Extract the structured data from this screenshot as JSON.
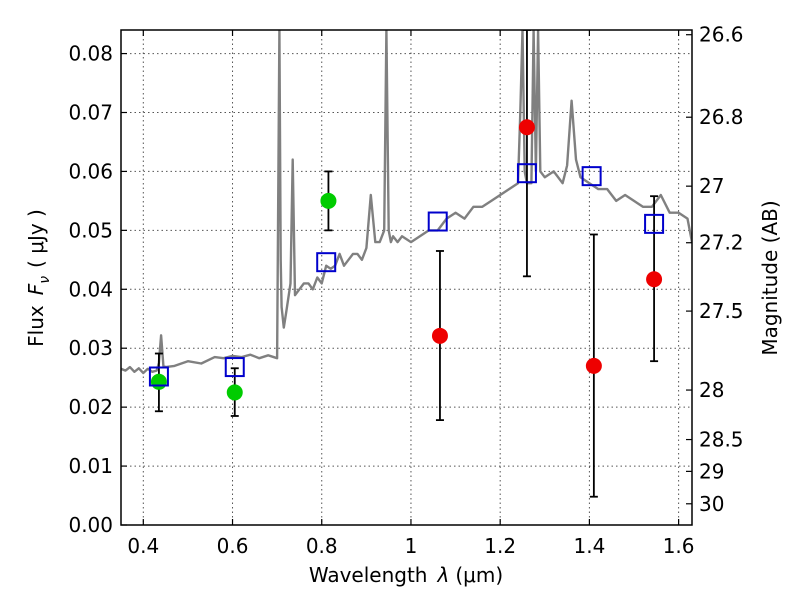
{
  "chart_data": {
    "type": "scatter",
    "xlabel": "Wavelength",
    "xlabel_symbol": "λ",
    "xlabel_unit": "(μm)",
    "ylabel": "Flux",
    "ylabel_symbol": "F",
    "ylabel_sub": "ν",
    "ylabel_unit": "( μJy )",
    "y2label": "Magnitude (AB)",
    "xlim": [
      0.35,
      1.63
    ],
    "ylim": [
      0.0,
      0.084
    ],
    "grid": true,
    "x_ticks": [
      0.4,
      0.6,
      0.8,
      1.0,
      1.2,
      1.4,
      1.6
    ],
    "x_tick_labels": [
      "0.4",
      "0.6",
      "0.8",
      "1",
      "1.2",
      "1.4",
      "1.6"
    ],
    "y_ticks": [
      0.0,
      0.01,
      0.02,
      0.03,
      0.04,
      0.05,
      0.06,
      0.07,
      0.08
    ],
    "y_tick_labels": [
      "0.00",
      "0.01",
      "0.02",
      "0.03",
      "0.04",
      "0.05",
      "0.06",
      "0.07",
      "0.08"
    ],
    "y2_ticks": [
      {
        "label": "26.6",
        "flux": 0.0832
      },
      {
        "label": "26.8",
        "flux": 0.0692
      },
      {
        "label": "27",
        "flux": 0.0575
      },
      {
        "label": "27.2",
        "flux": 0.0479
      },
      {
        "label": "27.5",
        "flux": 0.0363
      },
      {
        "label": "28",
        "flux": 0.0229
      },
      {
        "label": "28.5",
        "flux": 0.0145
      },
      {
        "label": "29",
        "flux": 0.0091
      },
      {
        "label": "30",
        "flux": 0.0036
      }
    ],
    "series": [
      {
        "color": "#808080",
        "kind": "line",
        "x": [
          0.35,
          0.36,
          0.37,
          0.38,
          0.39,
          0.4,
          0.41,
          0.42,
          0.43,
          0.435,
          0.44,
          0.445,
          0.45,
          0.47,
          0.5,
          0.53,
          0.56,
          0.58,
          0.6,
          0.62,
          0.64,
          0.66,
          0.68,
          0.7,
          0.702,
          0.705,
          0.708,
          0.71,
          0.715,
          0.72,
          0.73,
          0.735,
          0.74,
          0.75,
          0.76,
          0.77,
          0.78,
          0.79,
          0.8,
          0.81,
          0.82,
          0.83,
          0.84,
          0.85,
          0.86,
          0.87,
          0.88,
          0.89,
          0.9,
          0.91,
          0.92,
          0.93,
          0.94,
          0.945,
          0.95,
          0.955,
          0.96,
          0.97,
          0.98,
          1.0,
          1.02,
          1.04,
          1.06,
          1.08,
          1.1,
          1.12,
          1.14,
          1.16,
          1.18,
          1.2,
          1.22,
          1.24,
          1.245,
          1.25,
          1.255,
          1.26,
          1.27,
          1.275,
          1.28,
          1.285,
          1.29,
          1.3,
          1.32,
          1.34,
          1.35,
          1.36,
          1.37,
          1.38,
          1.4,
          1.42,
          1.44,
          1.46,
          1.48,
          1.5,
          1.52,
          1.54,
          1.56,
          1.58,
          1.6,
          1.62,
          1.63
        ],
        "y": [
          0.0265,
          0.0262,
          0.0268,
          0.026,
          0.0266,
          0.0258,
          0.0265,
          0.026,
          0.0262,
          0.0275,
          0.0322,
          0.027,
          0.0268,
          0.027,
          0.0278,
          0.0274,
          0.0285,
          0.0283,
          0.0287,
          0.0285,
          0.0289,
          0.0283,
          0.0288,
          0.0283,
          0.05,
          0.084,
          0.045,
          0.037,
          0.0335,
          0.036,
          0.041,
          0.062,
          0.039,
          0.04,
          0.041,
          0.041,
          0.04,
          0.042,
          0.041,
          0.044,
          0.0435,
          0.044,
          0.046,
          0.044,
          0.045,
          0.046,
          0.046,
          0.045,
          0.047,
          0.056,
          0.048,
          0.048,
          0.05,
          0.084,
          0.05,
          0.048,
          0.049,
          0.048,
          0.049,
          0.048,
          0.049,
          0.05,
          0.05,
          0.052,
          0.053,
          0.052,
          0.054,
          0.054,
          0.055,
          0.056,
          0.057,
          0.058,
          0.07,
          0.084,
          0.06,
          0.058,
          0.058,
          0.084,
          0.06,
          0.084,
          0.06,
          0.059,
          0.06,
          0.058,
          0.061,
          0.072,
          0.062,
          0.059,
          0.058,
          0.057,
          0.057,
          0.055,
          0.056,
          0.055,
          0.054,
          0.054,
          0.056,
          0.053,
          0.053,
          0.052,
          0.048
        ]
      },
      {
        "color": "#00cc00",
        "kind": "points",
        "marker": "circle",
        "x": [
          0.435,
          0.605,
          0.815
        ],
        "y": [
          0.0243,
          0.0225,
          0.055
        ],
        "err_low": [
          0.0193,
          0.0185,
          0.05
        ],
        "err_high": [
          0.0291,
          0.0266,
          0.06
        ]
      },
      {
        "color": "#ee0000",
        "kind": "points",
        "marker": "circle",
        "x": [
          1.065,
          1.26,
          1.41,
          1.545
        ],
        "y": [
          0.0321,
          0.0675,
          0.027,
          0.0417
        ],
        "err_low": [
          0.0178,
          0.0422,
          0.0048,
          0.0278
        ],
        "err_high": [
          0.0465,
          0.084,
          0.0493,
          0.0558
        ]
      },
      {
        "color": "#0000cc",
        "kind": "points",
        "marker": "open-square",
        "x": [
          0.435,
          0.605,
          0.81,
          1.06,
          1.26,
          1.405,
          1.545
        ],
        "y": [
          0.0252,
          0.0268,
          0.0446,
          0.0515,
          0.0597,
          0.0592,
          0.0511
        ]
      }
    ]
  }
}
